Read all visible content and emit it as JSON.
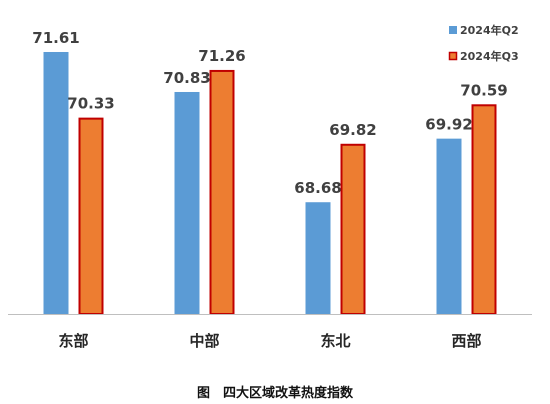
{
  "caption": "图　四大区域改革热度指数",
  "colors": {
    "q2_fill": "#5b9bd5",
    "q3_fill": "#ed7d31",
    "q3_border": "#c00000",
    "axis": "#bfbfbf"
  },
  "chart_data": {
    "type": "bar",
    "categories": [
      "东部",
      "中部",
      "东北",
      "西部"
    ],
    "series": [
      {
        "name": "2024年Q2",
        "values": [
          71.61,
          70.83,
          68.68,
          69.92
        ]
      },
      {
        "name": "2024年Q3",
        "values": [
          70.33,
          71.26,
          69.82,
          70.59
        ]
      }
    ],
    "ylim": [
      66.5,
      72
    ],
    "legend": "top-right",
    "grid": false
  }
}
